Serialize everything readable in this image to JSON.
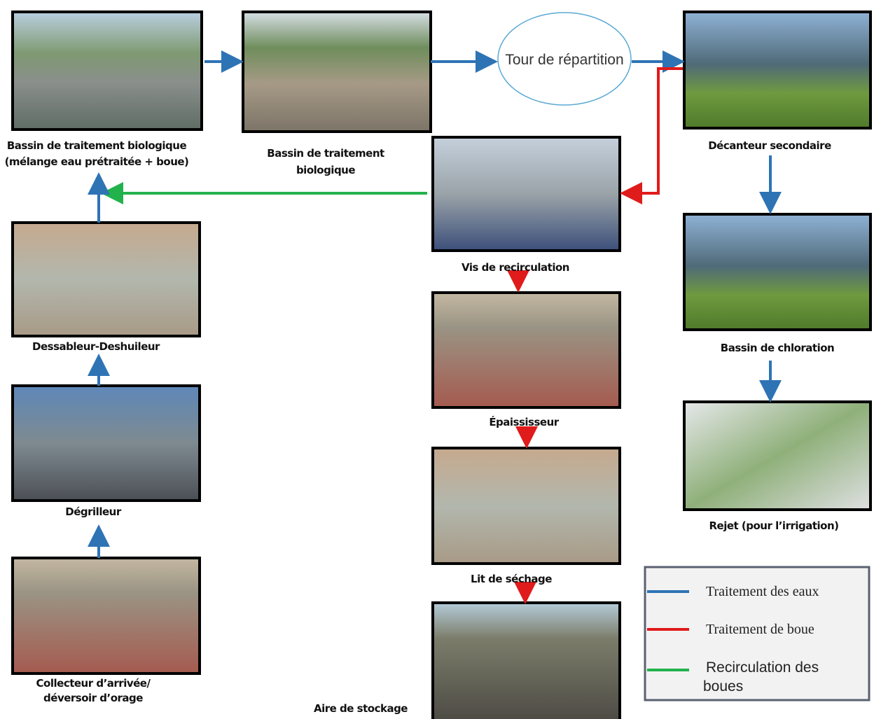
{
  "tower": "Tour de répartition",
  "nodes": [
    {
      "lines": [
        "Bassin de traitement biologique",
        "(mélange eau prétraitée + boue)"
      ]
    },
    {
      "lines": [
        "Bassin de traitement",
        "biologique"
      ]
    },
    {
      "lines": [
        "Décanteur secondaire"
      ]
    },
    {
      "lines": [
        "Vis de recirculation"
      ]
    },
    {
      "lines": [
        "Dessableur-Deshuileur"
      ]
    },
    {
      "lines": [
        "Bassin de chloration"
      ]
    },
    {
      "lines": [
        "Épaississeur"
      ]
    },
    {
      "lines": [
        "Dégrilleur"
      ]
    },
    {
      "lines": [
        "Rejet (pour l’irrigation)"
      ]
    },
    {
      "lines": [
        "Lit de séchage"
      ]
    },
    {
      "lines": [
        "Collecteur d’arrivée/",
        "déversoir d’orage"
      ]
    },
    {
      "lines": [
        "Aire de stockage"
      ]
    }
  ],
  "legend": [
    "Traitement des eaux",
    "Traitement de boue",
    {
      "lines": [
        "Recirculation des",
        "boues"
      ]
    }
  ]
}
